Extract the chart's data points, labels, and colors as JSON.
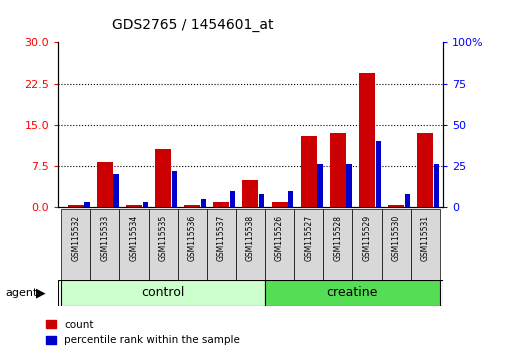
{
  "title": "GDS2765 / 1454601_at",
  "samples": [
    "GSM115532",
    "GSM115533",
    "GSM115534",
    "GSM115535",
    "GSM115536",
    "GSM115537",
    "GSM115538",
    "GSM115526",
    "GSM115527",
    "GSM115528",
    "GSM115529",
    "GSM115530",
    "GSM115531"
  ],
  "count_values": [
    0.4,
    8.2,
    0.4,
    10.5,
    0.4,
    1.0,
    5.0,
    1.0,
    13.0,
    13.5,
    24.5,
    0.4,
    13.5
  ],
  "percentile_values": [
    3,
    20,
    3,
    22,
    5,
    10,
    8,
    10,
    26,
    26,
    40,
    8,
    26
  ],
  "ylim_left": [
    0,
    30
  ],
  "ylim_right": [
    0,
    100
  ],
  "yticks_left": [
    0,
    7.5,
    15,
    22.5,
    30
  ],
  "yticks_right": [
    0,
    25,
    50,
    75,
    100
  ],
  "bar_color_red": "#CC0000",
  "bar_color_blue": "#0000CC",
  "red_bar_width": 0.55,
  "blue_bar_width": 0.18,
  "legend_count_label": "count",
  "legend_pct_label": "percentile rank within the sample",
  "agent_label": "agent",
  "control_color": "#CCFFCC",
  "creatine_color": "#55DD55",
  "label_bg_color": "#D8D8D8"
}
